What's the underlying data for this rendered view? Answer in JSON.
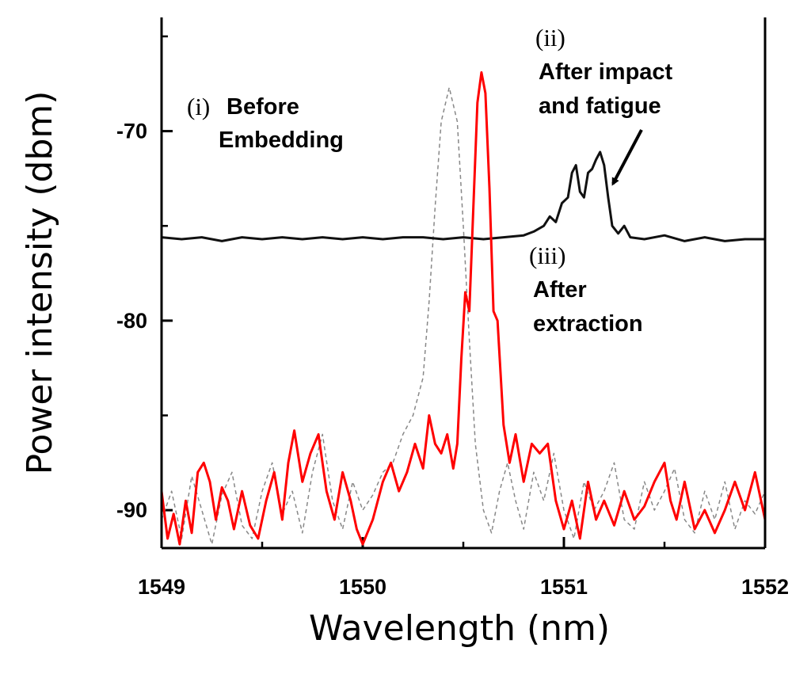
{
  "chart_data": {
    "type": "line",
    "title": "",
    "xlabel": "Wavelength (nm)",
    "ylabel": "Power intensity (dbm)",
    "xlim": [
      1549,
      1552
    ],
    "ylim": [
      -92,
      -64
    ],
    "x_ticks": [
      1549,
      1550,
      1551,
      1552
    ],
    "x_tick_labels": [
      "1549",
      "1550",
      "1551",
      "1552"
    ],
    "y_ticks": [
      -70,
      -80,
      -90
    ],
    "y_tick_labels": [
      "-70",
      "-80",
      "-90"
    ],
    "series": [
      {
        "name": "(i) Before Embedding",
        "color": "#888888",
        "style": "dashed",
        "peak": [
          1550.43,
          -67.7
        ],
        "points": [
          [
            1549.0,
            -90.5
          ],
          [
            1549.05,
            -89.0
          ],
          [
            1549.1,
            -91.5
          ],
          [
            1549.15,
            -88.2
          ],
          [
            1549.2,
            -90.0
          ],
          [
            1549.25,
            -91.8
          ],
          [
            1549.3,
            -89.2
          ],
          [
            1549.35,
            -88.0
          ],
          [
            1549.4,
            -90.8
          ],
          [
            1549.45,
            -91.5
          ],
          [
            1549.5,
            -89.0
          ],
          [
            1549.55,
            -87.5
          ],
          [
            1549.6,
            -90.2
          ],
          [
            1549.65,
            -89.0
          ],
          [
            1549.7,
            -91.2
          ],
          [
            1549.75,
            -88.0
          ],
          [
            1549.8,
            -86.0
          ],
          [
            1549.85,
            -89.5
          ],
          [
            1549.9,
            -91.0
          ],
          [
            1549.95,
            -88.5
          ],
          [
            1550.0,
            -90.0
          ],
          [
            1550.05,
            -89.2
          ],
          [
            1550.1,
            -88.0
          ],
          [
            1550.15,
            -87.5
          ],
          [
            1550.2,
            -86.0
          ],
          [
            1550.25,
            -85.0
          ],
          [
            1550.3,
            -83.0
          ],
          [
            1550.33,
            -79.0
          ],
          [
            1550.36,
            -74.0
          ],
          [
            1550.39,
            -69.5
          ],
          [
            1550.43,
            -67.7
          ],
          [
            1550.47,
            -69.5
          ],
          [
            1550.5,
            -75.0
          ],
          [
            1550.53,
            -81.0
          ],
          [
            1550.56,
            -86.5
          ],
          [
            1550.6,
            -90.0
          ],
          [
            1550.64,
            -91.2
          ],
          [
            1550.68,
            -89.0
          ],
          [
            1550.72,
            -87.5
          ],
          [
            1550.76,
            -89.5
          ],
          [
            1550.8,
            -91.0
          ],
          [
            1550.85,
            -88.0
          ],
          [
            1550.9,
            -89.5
          ],
          [
            1550.95,
            -87.0
          ],
          [
            1551.0,
            -90.0
          ],
          [
            1551.05,
            -91.5
          ],
          [
            1551.1,
            -88.5
          ],
          [
            1551.15,
            -90.0
          ],
          [
            1551.2,
            -89.0
          ],
          [
            1551.25,
            -87.5
          ],
          [
            1551.3,
            -90.5
          ],
          [
            1551.35,
            -91.0
          ],
          [
            1551.4,
            -88.5
          ],
          [
            1551.45,
            -90.0
          ],
          [
            1551.5,
            -89.0
          ],
          [
            1551.55,
            -87.8
          ],
          [
            1551.6,
            -90.5
          ],
          [
            1551.65,
            -91.2
          ],
          [
            1551.7,
            -89.0
          ],
          [
            1551.75,
            -90.5
          ],
          [
            1551.8,
            -88.5
          ],
          [
            1551.85,
            -91.0
          ],
          [
            1551.9,
            -89.5
          ],
          [
            1551.95,
            -90.2
          ],
          [
            1552.0,
            -89.0
          ]
        ]
      },
      {
        "name": "(ii) After impact and fatigue",
        "color": "#111111",
        "style": "solid",
        "peak": [
          1551.18,
          -71.1
        ],
        "points": [
          [
            1549.0,
            -75.6
          ],
          [
            1549.1,
            -75.7
          ],
          [
            1549.2,
            -75.6
          ],
          [
            1549.3,
            -75.8
          ],
          [
            1549.4,
            -75.6
          ],
          [
            1549.5,
            -75.7
          ],
          [
            1549.6,
            -75.6
          ],
          [
            1549.7,
            -75.7
          ],
          [
            1549.8,
            -75.6
          ],
          [
            1549.9,
            -75.7
          ],
          [
            1550.0,
            -75.6
          ],
          [
            1550.1,
            -75.7
          ],
          [
            1550.2,
            -75.6
          ],
          [
            1550.3,
            -75.6
          ],
          [
            1550.4,
            -75.7
          ],
          [
            1550.5,
            -75.6
          ],
          [
            1550.6,
            -75.7
          ],
          [
            1550.7,
            -75.6
          ],
          [
            1550.8,
            -75.5
          ],
          [
            1550.85,
            -75.3
          ],
          [
            1550.9,
            -75.0
          ],
          [
            1550.93,
            -74.5
          ],
          [
            1550.96,
            -74.8
          ],
          [
            1550.99,
            -73.8
          ],
          [
            1551.02,
            -73.5
          ],
          [
            1551.04,
            -72.2
          ],
          [
            1551.06,
            -71.8
          ],
          [
            1551.08,
            -73.2
          ],
          [
            1551.1,
            -73.5
          ],
          [
            1551.12,
            -72.2
          ],
          [
            1551.14,
            -72.0
          ],
          [
            1551.16,
            -71.5
          ],
          [
            1551.18,
            -71.1
          ],
          [
            1551.2,
            -71.8
          ],
          [
            1551.22,
            -73.5
          ],
          [
            1551.24,
            -75.0
          ],
          [
            1551.27,
            -75.4
          ],
          [
            1551.3,
            -75.0
          ],
          [
            1551.33,
            -75.6
          ],
          [
            1551.4,
            -75.7
          ],
          [
            1551.5,
            -75.5
          ],
          [
            1551.6,
            -75.8
          ],
          [
            1551.7,
            -75.6
          ],
          [
            1551.8,
            -75.8
          ],
          [
            1551.9,
            -75.7
          ],
          [
            1552.0,
            -75.7
          ]
        ]
      },
      {
        "name": "(iii) After extraction",
        "color": "#ff0000",
        "style": "solid",
        "peak": [
          1550.59,
          -66.9
        ],
        "points": [
          [
            1549.0,
            -89.0
          ],
          [
            1549.03,
            -91.5
          ],
          [
            1549.06,
            -90.2
          ],
          [
            1549.09,
            -91.8
          ],
          [
            1549.12,
            -89.5
          ],
          [
            1549.15,
            -91.2
          ],
          [
            1549.18,
            -88.0
          ],
          [
            1549.21,
            -87.5
          ],
          [
            1549.24,
            -88.5
          ],
          [
            1549.27,
            -90.5
          ],
          [
            1549.3,
            -88.8
          ],
          [
            1549.33,
            -89.5
          ],
          [
            1549.36,
            -91.0
          ],
          [
            1549.4,
            -89.0
          ],
          [
            1549.44,
            -90.8
          ],
          [
            1549.48,
            -91.5
          ],
          [
            1549.52,
            -89.5
          ],
          [
            1549.56,
            -88.0
          ],
          [
            1549.6,
            -90.5
          ],
          [
            1549.63,
            -87.5
          ],
          [
            1549.66,
            -85.8
          ],
          [
            1549.7,
            -88.5
          ],
          [
            1549.74,
            -87.0
          ],
          [
            1549.78,
            -86.0
          ],
          [
            1549.82,
            -89.0
          ],
          [
            1549.86,
            -90.5
          ],
          [
            1549.9,
            -88.0
          ],
          [
            1549.94,
            -89.5
          ],
          [
            1549.97,
            -91.0
          ],
          [
            1550.0,
            -91.8
          ],
          [
            1550.05,
            -90.5
          ],
          [
            1550.1,
            -88.5
          ],
          [
            1550.14,
            -87.5
          ],
          [
            1550.18,
            -89.0
          ],
          [
            1550.22,
            -88.0
          ],
          [
            1550.26,
            -86.5
          ],
          [
            1550.3,
            -87.8
          ],
          [
            1550.33,
            -85.0
          ],
          [
            1550.36,
            -86.5
          ],
          [
            1550.39,
            -87.0
          ],
          [
            1550.42,
            -86.0
          ],
          [
            1550.45,
            -87.8
          ],
          [
            1550.47,
            -86.5
          ],
          [
            1550.49,
            -82.0
          ],
          [
            1550.51,
            -78.5
          ],
          [
            1550.53,
            -79.5
          ],
          [
            1550.55,
            -74.0
          ],
          [
            1550.57,
            -68.5
          ],
          [
            1550.59,
            -66.9
          ],
          [
            1550.61,
            -68.0
          ],
          [
            1550.63,
            -73.0
          ],
          [
            1550.65,
            -79.5
          ],
          [
            1550.67,
            -80.0
          ],
          [
            1550.7,
            -85.5
          ],
          [
            1550.73,
            -87.5
          ],
          [
            1550.76,
            -86.0
          ],
          [
            1550.8,
            -88.5
          ],
          [
            1550.84,
            -86.5
          ],
          [
            1550.88,
            -87.0
          ],
          [
            1550.92,
            -86.5
          ],
          [
            1550.96,
            -89.5
          ],
          [
            1551.0,
            -91.0
          ],
          [
            1551.04,
            -89.5
          ],
          [
            1551.08,
            -91.5
          ],
          [
            1551.12,
            -88.5
          ],
          [
            1551.16,
            -90.5
          ],
          [
            1551.2,
            -89.5
          ],
          [
            1551.25,
            -90.8
          ],
          [
            1551.3,
            -89.0
          ],
          [
            1551.35,
            -90.5
          ],
          [
            1551.4,
            -89.8
          ],
          [
            1551.45,
            -88.5
          ],
          [
            1551.5,
            -87.5
          ],
          [
            1551.53,
            -89.5
          ],
          [
            1551.56,
            -90.5
          ],
          [
            1551.6,
            -88.5
          ],
          [
            1551.65,
            -91.0
          ],
          [
            1551.7,
            -90.0
          ],
          [
            1551.75,
            -91.2
          ],
          [
            1551.8,
            -90.0
          ],
          [
            1551.85,
            -88.5
          ],
          [
            1551.9,
            -90.0
          ],
          [
            1551.95,
            -88.0
          ],
          [
            1552.0,
            -90.5
          ]
        ]
      }
    ],
    "annotations": [
      {
        "id": "i",
        "marker": "(i)",
        "lines": [
          "Before",
          "Embedding"
        ]
      },
      {
        "id": "ii",
        "marker": "(ii)",
        "lines": [
          "After impact",
          "and fatigue"
        ]
      },
      {
        "id": "iii",
        "marker": "(iii)",
        "lines": [
          "After",
          "extraction"
        ]
      }
    ]
  }
}
